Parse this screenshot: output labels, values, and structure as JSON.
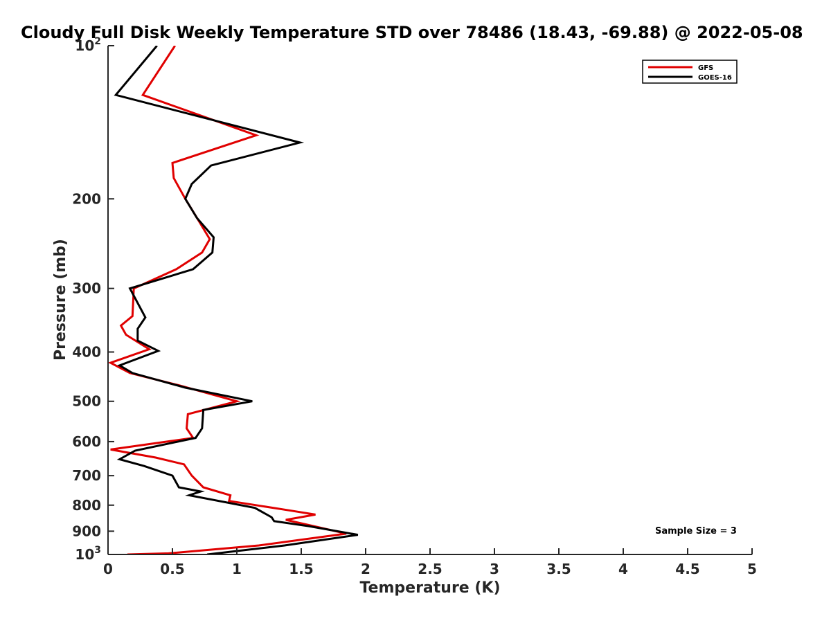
{
  "chart_data": {
    "type": "line",
    "title": "Cloudy Full Disk Weekly Temperature STD over 78486 (18.43, -69.88) @ 2022-05-08",
    "xlabel": "Temperature (K)",
    "ylabel": "Pressure (mb)",
    "xlim": [
      0,
      5
    ],
    "ylim": [
      100,
      1000
    ],
    "yscale": "log",
    "yreversed": true,
    "grid": false,
    "legend_position": "top-right",
    "x_ticks": [
      0,
      0.5,
      1,
      1.5,
      2,
      2.5,
      3,
      3.5,
      4,
      4.5,
      5
    ],
    "x_tick_labels": [
      "0",
      "0.5",
      "1",
      "1.5",
      "2",
      "2.5",
      "3",
      "3.5",
      "4",
      "4.5",
      "5"
    ],
    "y_ticks": [
      100,
      200,
      300,
      400,
      500,
      600,
      700,
      800,
      900,
      1000
    ],
    "y_tick_labels": [
      {
        "base": "10",
        "exp": "2"
      },
      {
        "base": "200",
        "exp": ""
      },
      {
        "base": "300",
        "exp": ""
      },
      {
        "base": "400",
        "exp": ""
      },
      {
        "base": "500",
        "exp": ""
      },
      {
        "base": "600",
        "exp": ""
      },
      {
        "base": "700",
        "exp": ""
      },
      {
        "base": "800",
        "exp": ""
      },
      {
        "base": "900",
        "exp": ""
      },
      {
        "base": "10",
        "exp": "3"
      }
    ],
    "annotation": "Sample Size = 3",
    "series": [
      {
        "name": "GFS",
        "color": "#e00000",
        "points": [
          [
            0.52,
            100
          ],
          [
            0.27,
            125
          ],
          [
            1.15,
            150
          ],
          [
            0.5,
            170
          ],
          [
            0.51,
            182
          ],
          [
            0.6,
            200
          ],
          [
            0.7,
            220
          ],
          [
            0.79,
            240
          ],
          [
            0.73,
            255
          ],
          [
            0.53,
            275
          ],
          [
            0.2,
            300
          ],
          [
            0.19,
            340
          ],
          [
            0.1,
            355
          ],
          [
            0.14,
            370
          ],
          [
            0.32,
            395
          ],
          [
            0.02,
            420
          ],
          [
            0.17,
            440
          ],
          [
            0.55,
            465
          ],
          [
            1.0,
            500
          ],
          [
            0.62,
            530
          ],
          [
            0.61,
            565
          ],
          [
            0.66,
            590
          ],
          [
            0.02,
            622
          ],
          [
            0.37,
            645
          ],
          [
            0.59,
            665
          ],
          [
            0.65,
            700
          ],
          [
            0.74,
            738
          ],
          [
            0.95,
            765
          ],
          [
            0.94,
            785
          ],
          [
            1.42,
            820
          ],
          [
            1.61,
            835
          ],
          [
            1.38,
            855
          ],
          [
            1.6,
            880
          ],
          [
            1.85,
            910
          ],
          [
            1.17,
            960
          ],
          [
            0.47,
            995
          ],
          [
            0.15,
            1000
          ]
        ]
      },
      {
        "name": "GOES-16",
        "color": "#000000",
        "points": [
          [
            0.38,
            100
          ],
          [
            0.06,
            125
          ],
          [
            1.49,
            155
          ],
          [
            0.8,
            172
          ],
          [
            0.65,
            187
          ],
          [
            0.6,
            200
          ],
          [
            0.69,
            218
          ],
          [
            0.82,
            238
          ],
          [
            0.81,
            255
          ],
          [
            0.66,
            275
          ],
          [
            0.17,
            300
          ],
          [
            0.29,
            342
          ],
          [
            0.23,
            360
          ],
          [
            0.23,
            380
          ],
          [
            0.39,
            398
          ],
          [
            0.09,
            425
          ],
          [
            0.19,
            440
          ],
          [
            0.6,
            470
          ],
          [
            1.12,
            500
          ],
          [
            0.74,
            520
          ],
          [
            0.73,
            565
          ],
          [
            0.68,
            590
          ],
          [
            0.21,
            625
          ],
          [
            0.09,
            650
          ],
          [
            0.28,
            670
          ],
          [
            0.5,
            700
          ],
          [
            0.55,
            738
          ],
          [
            0.72,
            752
          ],
          [
            0.63,
            765
          ],
          [
            1.14,
            810
          ],
          [
            1.27,
            845
          ],
          [
            1.29,
            860
          ],
          [
            1.56,
            880
          ],
          [
            1.94,
            915
          ],
          [
            1.37,
            960
          ],
          [
            0.77,
            1000
          ]
        ]
      }
    ]
  }
}
